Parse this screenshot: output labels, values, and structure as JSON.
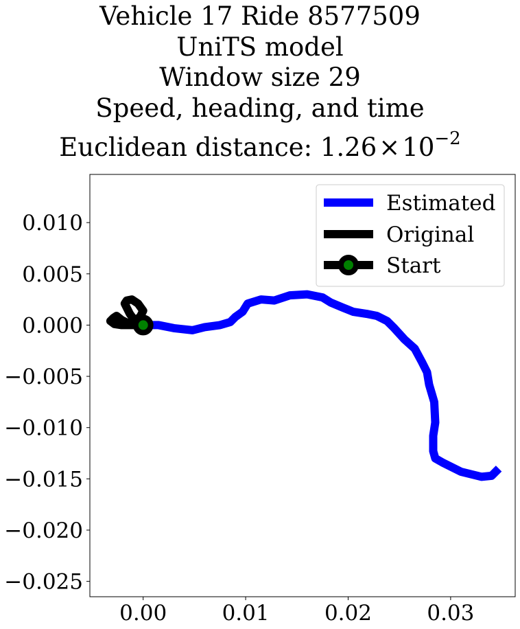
{
  "chart_data": {
    "type": "line",
    "title_lines": [
      "Vehicle 17 Ride 8577509",
      "UniTS model",
      "Window size 29",
      "Speed, heading, and time"
    ],
    "title_distance_prefix": "Euclidean distance: ",
    "title_distance_mantissa": "1.26",
    "title_distance_times": "×",
    "title_distance_base": "10",
    "title_distance_exponent": "−2",
    "xlabel": "",
    "ylabel": "",
    "xlim": [
      -0.0052,
      0.0363
    ],
    "ylim": [
      -0.0265,
      0.0147
    ],
    "x_ticks": [
      0.0,
      0.01,
      0.02,
      0.03
    ],
    "x_tick_labels": [
      "0.00",
      "0.01",
      "0.02",
      "0.03"
    ],
    "y_ticks": [
      0.01,
      0.005,
      0.0,
      -0.005,
      -0.01,
      -0.015,
      -0.02,
      -0.025
    ],
    "y_tick_labels": [
      "0.010",
      "0.005",
      "0.000",
      "−0.005",
      "−0.010",
      "−0.015",
      "−0.020",
      "−0.025"
    ],
    "grid": false,
    "legend_position": "top-right",
    "series": [
      {
        "name": "Estimated",
        "color": "#0000ff",
        "x": [
          0.0,
          0.0015,
          0.003,
          0.0048,
          0.006,
          0.0075,
          0.0085,
          0.009,
          0.0097,
          0.0102,
          0.0115,
          0.0128,
          0.0143,
          0.016,
          0.0175,
          0.0183,
          0.0195,
          0.0205,
          0.0218,
          0.0228,
          0.0238,
          0.0245,
          0.0255,
          0.0265,
          0.0272,
          0.0277,
          0.0279,
          0.0284,
          0.0285,
          0.0283,
          0.0283,
          0.0285,
          0.0292,
          0.031,
          0.033,
          0.034,
          0.0347
        ],
        "y": [
          0.0,
          0.0,
          -0.0003,
          -0.0005,
          -0.0002,
          0.0,
          0.0003,
          0.0008,
          0.0013,
          0.0021,
          0.0025,
          0.0024,
          0.0029,
          0.003,
          0.0027,
          0.0022,
          0.0017,
          0.0013,
          0.0011,
          0.0009,
          0.0004,
          -0.0003,
          -0.0014,
          -0.0023,
          -0.0036,
          -0.0046,
          -0.0058,
          -0.0075,
          -0.0095,
          -0.0108,
          -0.0123,
          -0.013,
          -0.0134,
          -0.0143,
          -0.0148,
          -0.0147,
          -0.014
        ]
      },
      {
        "name": "Original",
        "color": "#000000",
        "x": [
          0.0,
          -0.0008,
          -0.0013,
          -0.0016,
          -0.0018,
          -0.0016,
          -0.0011,
          -0.0005,
          0.0,
          -0.0003,
          -0.0009,
          -0.0015,
          -0.0021,
          -0.0026,
          -0.0029,
          -0.0032,
          -0.0028,
          -0.0021,
          -0.0013,
          -0.0006,
          0.0
        ],
        "y": [
          0.0,
          0.0004,
          0.0011,
          0.0017,
          0.0021,
          0.0024,
          0.0025,
          0.0021,
          0.0014,
          0.0008,
          0.0004,
          0.0002,
          0.0005,
          0.0009,
          0.0007,
          0.0004,
          0.0001,
          0.0,
          0.0,
          0.0,
          0.0
        ]
      },
      {
        "name": "Start",
        "color": "#000000",
        "marker_fill": "#008000",
        "x": [
          0.0
        ],
        "y": [
          0.0
        ]
      }
    ]
  }
}
